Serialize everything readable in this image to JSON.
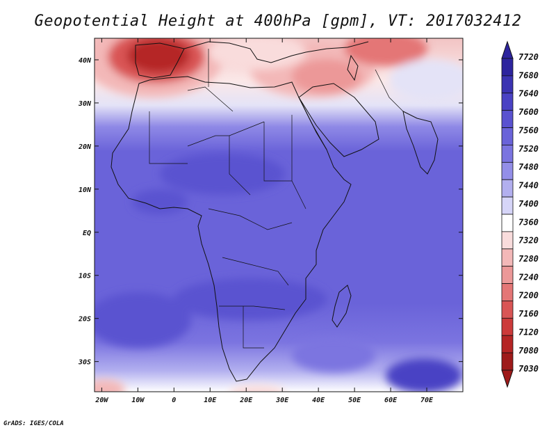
{
  "title": "Geopotential Height at 400hPa [gpm], VT: 2017032412",
  "credit": "GrADS: IGES/COLA",
  "map": {
    "lon_range": [
      -22,
      80
    ],
    "lat_range": [
      -37,
      45
    ],
    "lat_ticks": [
      {
        "label": "40N",
        "value": 40
      },
      {
        "label": "30N",
        "value": 30
      },
      {
        "label": "20N",
        "value": 20
      },
      {
        "label": "10N",
        "value": 10
      },
      {
        "label": "EQ",
        "value": 0
      },
      {
        "label": "10S",
        "value": -10
      },
      {
        "label": "20S",
        "value": -20
      },
      {
        "label": "30S",
        "value": -30
      }
    ],
    "lon_ticks": [
      {
        "label": "20W",
        "value": -20
      },
      {
        "label": "10W",
        "value": -10
      },
      {
        "label": "0",
        "value": 0
      },
      {
        "label": "10E",
        "value": 10
      },
      {
        "label": "20E",
        "value": 20
      },
      {
        "label": "30E",
        "value": 30
      },
      {
        "label": "40E",
        "value": 40
      },
      {
        "label": "50E",
        "value": 50
      },
      {
        "label": "60E",
        "value": 60
      },
      {
        "label": "70E",
        "value": 70
      }
    ]
  },
  "colorbar": {
    "levels": [
      "7720",
      "7680",
      "7640",
      "7600",
      "7560",
      "7520",
      "7480",
      "7440",
      "7400",
      "7360",
      "7320",
      "7280",
      "7240",
      "7200",
      "7160",
      "7120",
      "7080",
      "7030"
    ],
    "colors_top_to_bottom": [
      "#2d249e",
      "#3b33b2",
      "#4a42c4",
      "#5a52d0",
      "#6a63d9",
      "#7b74e0",
      "#938ee8",
      "#b2afef",
      "#d6d5f8",
      "#ffffff",
      "#f9dcdc",
      "#f3b8b8",
      "#ec9898",
      "#e47676",
      "#d95555",
      "#cc3a3a",
      "#b52525",
      "#9e1a1a"
    ],
    "max_color": "#2d249e",
    "min_color": "#9e1a1a"
  }
}
